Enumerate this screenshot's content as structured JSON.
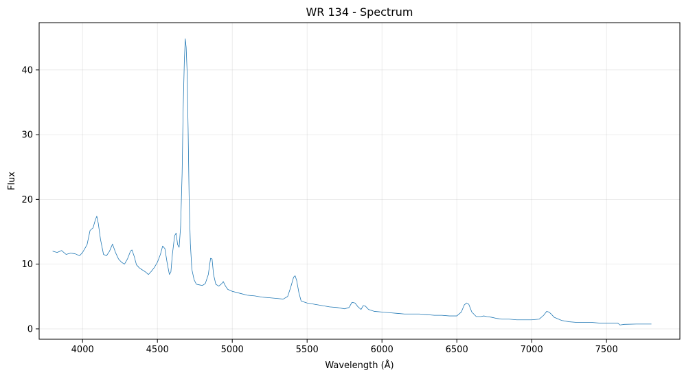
{
  "chart_data": {
    "type": "line",
    "title": "WR 134 - Spectrum",
    "xlabel": "Wavelength (Å)",
    "ylabel": "Flux",
    "xlim": [
      3710,
      7990
    ],
    "ylim": [
      -1.6,
      47.3
    ],
    "xticks": [
      4000,
      4500,
      5000,
      5500,
      6000,
      6500,
      7000,
      7500
    ],
    "yticks": [
      0,
      10,
      20,
      30,
      40
    ],
    "grid": true,
    "line_color": "#1f77b4",
    "series": [
      {
        "x": [
          3800,
          3830,
          3860,
          3890,
          3920,
          3950,
          3980,
          4000,
          4030,
          4050,
          4070,
          4085,
          4095,
          4105,
          4120,
          4140,
          4160,
          4180,
          4200,
          4220,
          4240,
          4260,
          4280,
          4300,
          4320,
          4330,
          4345,
          4360,
          4380,
          4400,
          4420,
          4440,
          4460,
          4480,
          4500,
          4520,
          4535,
          4550,
          4565,
          4580,
          4590,
          4600,
          4615,
          4625,
          4635,
          4645,
          4655,
          4665,
          4672,
          4680,
          4686,
          4692,
          4698,
          4705,
          4712,
          4720,
          4730,
          4745,
          4760,
          4780,
          4800,
          4820,
          4840,
          4855,
          4865,
          4875,
          4890,
          4910,
          4930,
          4940,
          4955,
          4970,
          5000,
          5050,
          5100,
          5150,
          5200,
          5250,
          5300,
          5340,
          5370,
          5390,
          5410,
          5420,
          5430,
          5445,
          5460,
          5500,
          5550,
          5600,
          5650,
          5700,
          5750,
          5780,
          5800,
          5820,
          5840,
          5860,
          5875,
          5890,
          5910,
          5950,
          6000,
          6050,
          6100,
          6150,
          6200,
          6250,
          6300,
          6350,
          6400,
          6450,
          6500,
          6530,
          6550,
          6565,
          6580,
          6600,
          6630,
          6660,
          6680,
          6700,
          6730,
          6770,
          6800,
          6850,
          6900,
          6950,
          7000,
          7050,
          7080,
          7100,
          7115,
          7130,
          7150,
          7200,
          7250,
          7300,
          7350,
          7400,
          7450,
          7500,
          7550,
          7575,
          7590,
          7620,
          7700,
          7800
        ],
        "y": [
          12.0,
          11.8,
          12.1,
          11.5,
          11.7,
          11.6,
          11.3,
          11.8,
          13.0,
          15.2,
          15.6,
          16.8,
          17.4,
          16.3,
          13.8,
          11.5,
          11.3,
          12.0,
          13.1,
          11.8,
          10.8,
          10.3,
          10.0,
          10.8,
          12.0,
          12.2,
          11.2,
          9.9,
          9.4,
          9.1,
          8.8,
          8.4,
          8.9,
          9.5,
          10.3,
          11.5,
          12.8,
          12.4,
          10.2,
          8.4,
          8.8,
          11.5,
          14.4,
          14.8,
          13.0,
          12.6,
          15.8,
          24.0,
          34.0,
          41.5,
          44.8,
          43.5,
          40.0,
          31.0,
          20.0,
          13.2,
          9.2,
          7.6,
          6.9,
          6.8,
          6.7,
          7.0,
          8.4,
          10.9,
          10.8,
          8.4,
          6.9,
          6.6,
          7.0,
          7.3,
          6.6,
          6.1,
          5.8,
          5.5,
          5.2,
          5.1,
          4.9,
          4.8,
          4.7,
          4.6,
          5.0,
          6.4,
          8.0,
          8.2,
          7.5,
          5.6,
          4.3,
          4.0,
          3.8,
          3.6,
          3.4,
          3.3,
          3.1,
          3.3,
          4.1,
          4.0,
          3.4,
          3.0,
          3.6,
          3.5,
          3.0,
          2.7,
          2.6,
          2.5,
          2.4,
          2.3,
          2.3,
          2.3,
          2.2,
          2.1,
          2.1,
          2.0,
          2.0,
          2.6,
          3.7,
          4.0,
          3.8,
          2.6,
          1.9,
          1.9,
          2.0,
          1.9,
          1.8,
          1.6,
          1.5,
          1.5,
          1.4,
          1.4,
          1.4,
          1.5,
          2.1,
          2.7,
          2.6,
          2.3,
          1.8,
          1.3,
          1.1,
          1.0,
          1.0,
          1.0,
          0.9,
          0.9,
          0.9,
          0.9,
          0.6,
          0.7,
          0.75,
          0.75
        ]
      }
    ]
  }
}
